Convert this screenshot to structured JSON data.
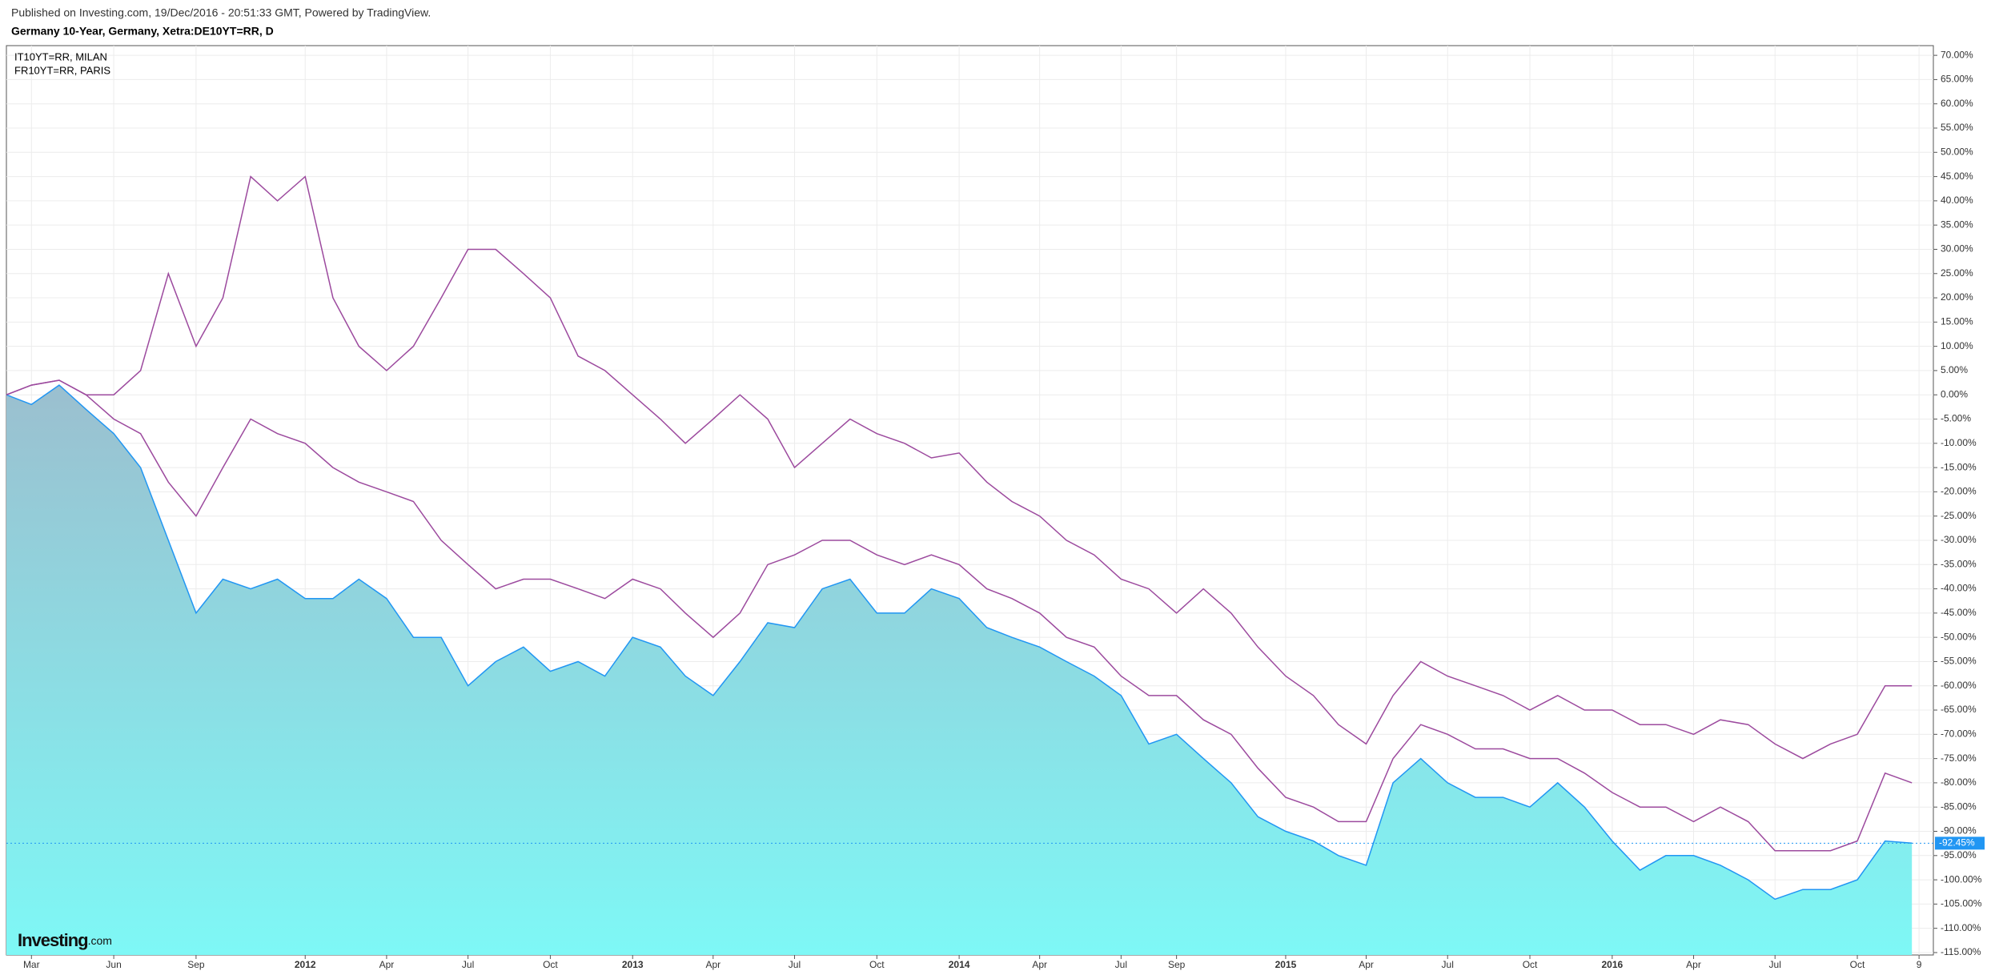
{
  "chart_data": {
    "type": "area-line",
    "subtitle": "Published on Investing.com, 19/Dec/2016 - 20:51:33 GMT, Powered by TradingView.",
    "title": "Germany 10-Year, Germany, Xetra:DE10YT=RR, D",
    "brand": {
      "name": "Investing",
      "suffix": ".com"
    },
    "x": [
      "2011-02",
      "2011-03",
      "2011-04",
      "2011-05",
      "2011-06",
      "2011-07",
      "2011-08",
      "2011-09",
      "2011-10",
      "2011-11",
      "2011-12",
      "2012-01",
      "2012-02",
      "2012-03",
      "2012-04",
      "2012-05",
      "2012-06",
      "2012-07",
      "2012-08",
      "2012-09",
      "2012-10",
      "2012-11",
      "2012-12",
      "2013-01",
      "2013-02",
      "2013-03",
      "2013-04",
      "2013-05",
      "2013-06",
      "2013-07",
      "2013-08",
      "2013-09",
      "2013-10",
      "2013-11",
      "2013-12",
      "2014-01",
      "2014-02",
      "2014-03",
      "2014-04",
      "2014-05",
      "2014-06",
      "2014-07",
      "2014-08",
      "2014-09",
      "2014-10",
      "2014-11",
      "2014-12",
      "2015-01",
      "2015-02",
      "2015-03",
      "2015-04",
      "2015-05",
      "2015-06",
      "2015-07",
      "2015-08",
      "2015-09",
      "2015-10",
      "2015-11",
      "2015-12",
      "2016-01",
      "2016-02",
      "2016-03",
      "2016-04",
      "2016-05",
      "2016-06",
      "2016-07",
      "2016-08",
      "2016-09",
      "2016-10",
      "2016-11",
      "2016-12"
    ],
    "series": [
      {
        "color": "#2196f3",
        "fill_top": "#9bbfcf",
        "fill_bottom": "#7ef8f6",
        "values": [
          0,
          -2,
          2,
          -3,
          -8,
          -15,
          -30,
          -45,
          -38,
          -40,
          -38,
          -42,
          -42,
          -38,
          -42,
          -50,
          -50,
          -60,
          -55,
          -52,
          -57,
          -55,
          -58,
          -50,
          -52,
          -58,
          -62,
          -55,
          -47,
          -48,
          -40,
          -38,
          -45,
          -45,
          -40,
          -42,
          -48,
          -50,
          -52,
          -55,
          -58,
          -62,
          -72,
          -70,
          -75,
          -80,
          -87,
          -90,
          -92,
          -95,
          -97,
          -80,
          -75,
          -80,
          -83,
          -83,
          -85,
          -80,
          -85,
          -92,
          -98,
          -95,
          -95,
          -97,
          -100,
          -104,
          -102,
          -102,
          -100,
          -92,
          -92.45
        ],
        "value_labels": [
          null,
          null,
          null,
          null,
          null,
          null,
          null,
          null,
          null,
          null,
          null,
          null,
          null,
          null,
          null,
          null,
          null,
          null,
          null,
          null,
          null,
          null,
          null,
          null,
          null,
          null,
          null,
          null,
          null,
          null,
          null,
          null,
          null,
          null,
          null,
          null,
          null,
          null,
          null,
          null,
          null,
          null,
          null,
          null,
          null,
          null,
          null,
          null,
          null,
          null,
          null,
          null,
          null,
          null,
          null,
          null,
          null,
          null,
          null,
          null,
          null,
          null,
          null,
          null,
          null,
          null,
          null,
          null,
          null,
          null,
          "-92.45%"
        ]
      },
      {
        "name": "IT10YT=RR, MILAN",
        "color": "#9c4a9e",
        "values": [
          0,
          2,
          3,
          0,
          0,
          5,
          25,
          10,
          20,
          45,
          40,
          45,
          20,
          10,
          5,
          10,
          20,
          30,
          30,
          25,
          20,
          8,
          5,
          0,
          -5,
          -10,
          -5,
          0,
          -5,
          -15,
          -10,
          -5,
          -8,
          -10,
          -13,
          -12,
          -18,
          -22,
          -25,
          -30,
          -33,
          -38,
          -40,
          -45,
          -40,
          -45,
          -52,
          -58,
          -62,
          -68,
          -72,
          -62,
          -55,
          -58,
          -60,
          -62,
          -65,
          -62,
          -65,
          -65,
          -68,
          -68,
          -70,
          -67,
          -68,
          -72,
          -75,
          -72,
          -70,
          -60,
          -60
        ]
      },
      {
        "name": "FR10YT=RR, PARIS",
        "color": "#9c4a9e",
        "values": [
          0,
          2,
          3,
          0,
          -5,
          -8,
          -18,
          -25,
          -15,
          -5,
          -8,
          -10,
          -15,
          -18,
          -20,
          -22,
          -30,
          -35,
          -40,
          -38,
          -38,
          -40,
          -42,
          -38,
          -40,
          -45,
          -50,
          -45,
          -35,
          -33,
          -30,
          -30,
          -33,
          -35,
          -33,
          -35,
          -40,
          -42,
          -45,
          -50,
          -52,
          -58,
          -62,
          -62,
          -67,
          -70,
          -77,
          -83,
          -85,
          -88,
          -88,
          -75,
          -68,
          -70,
          -73,
          -73,
          -75,
          -75,
          -78,
          -82,
          -85,
          -85,
          -88,
          -85,
          -88,
          -94,
          -94,
          -94,
          -92,
          -78,
          -80
        ]
      }
    ],
    "xlim": [
      "2011-02-01",
      "2016-12-25"
    ],
    "xticks": [
      {
        "value": "2011-03-01",
        "label": "Mar"
      },
      {
        "value": "2011-06-01",
        "label": "Jun"
      },
      {
        "value": "2011-09-01",
        "label": "Sep"
      },
      {
        "value": "2012-01-01",
        "label": "2012"
      },
      {
        "value": "2012-04-01",
        "label": "Apr"
      },
      {
        "value": "2012-07-01",
        "label": "Jul"
      },
      {
        "value": "2012-10-01",
        "label": "Oct"
      },
      {
        "value": "2013-01-01",
        "label": "2013"
      },
      {
        "value": "2013-04-01",
        "label": "Apr"
      },
      {
        "value": "2013-07-01",
        "label": "Jul"
      },
      {
        "value": "2013-10-01",
        "label": "Oct"
      },
      {
        "value": "2014-01-01",
        "label": "2014"
      },
      {
        "value": "2014-04-01",
        "label": "Apr"
      },
      {
        "value": "2014-07-01",
        "label": "Jul"
      },
      {
        "value": "2014-09-01",
        "label": "Sep"
      },
      {
        "value": "2015-01-01",
        "label": "2015"
      },
      {
        "value": "2015-04-01",
        "label": "Apr"
      },
      {
        "value": "2015-07-01",
        "label": "Jul"
      },
      {
        "value": "2015-10-01",
        "label": "Oct"
      },
      {
        "value": "2016-01-01",
        "label": "2016"
      },
      {
        "value": "2016-04-01",
        "label": "Apr"
      },
      {
        "value": "2016-07-01",
        "label": "Jul"
      },
      {
        "value": "2016-10-01",
        "label": "Oct"
      },
      {
        "value": "2016-12-09",
        "label": "9"
      }
    ],
    "ylim": [
      -115.5,
      72
    ],
    "yticks": [
      {
        "value": 70,
        "label": "70.00%"
      },
      {
        "value": 65,
        "label": "65.00%"
      },
      {
        "value": 60,
        "label": "60.00%"
      },
      {
        "value": 55,
        "label": "55.00%"
      },
      {
        "value": 50,
        "label": "50.00%"
      },
      {
        "value": 45,
        "label": "45.00%"
      },
      {
        "value": 40,
        "label": "40.00%"
      },
      {
        "value": 35,
        "label": "35.00%"
      },
      {
        "value": 30,
        "label": "30.00%"
      },
      {
        "value": 25,
        "label": "25.00%"
      },
      {
        "value": 20,
        "label": "20.00%"
      },
      {
        "value": 15,
        "label": "15.00%"
      },
      {
        "value": 10,
        "label": "10.00%"
      },
      {
        "value": 5,
        "label": "5.00%"
      },
      {
        "value": 0,
        "label": "0.00%"
      },
      {
        "value": -5,
        "label": "-5.00%"
      },
      {
        "value": -10,
        "label": "-10.00%"
      },
      {
        "value": -15,
        "label": "-15.00%"
      },
      {
        "value": -20,
        "label": "-20.00%"
      },
      {
        "value": -25,
        "label": "-25.00%"
      },
      {
        "value": -30,
        "label": "-30.00%"
      },
      {
        "value": -35,
        "label": "-35.00%"
      },
      {
        "value": -40,
        "label": "-40.00%"
      },
      {
        "value": -45,
        "label": "-45.00%"
      },
      {
        "value": -50,
        "label": "-50.00%"
      },
      {
        "value": -55,
        "label": "-55.00%"
      },
      {
        "value": -60,
        "label": "-60.00%"
      },
      {
        "value": -65,
        "label": "-65.00%"
      },
      {
        "value": -70,
        "label": "-70.00%"
      },
      {
        "value": -75,
        "label": "-75.00%"
      },
      {
        "value": -80,
        "label": "-80.00%"
      },
      {
        "value": -85,
        "label": "-85.00%"
      },
      {
        "value": -90,
        "label": "-90.00%"
      },
      {
        "value": -95,
        "label": "-95.00%"
      },
      {
        "value": -100,
        "label": "-100.00%"
      },
      {
        "value": -105,
        "label": "-105.00%"
      },
      {
        "value": -110,
        "label": "-110.00%"
      },
      {
        "value": -115,
        "label": "-115.00%"
      }
    ],
    "grid": true
  }
}
